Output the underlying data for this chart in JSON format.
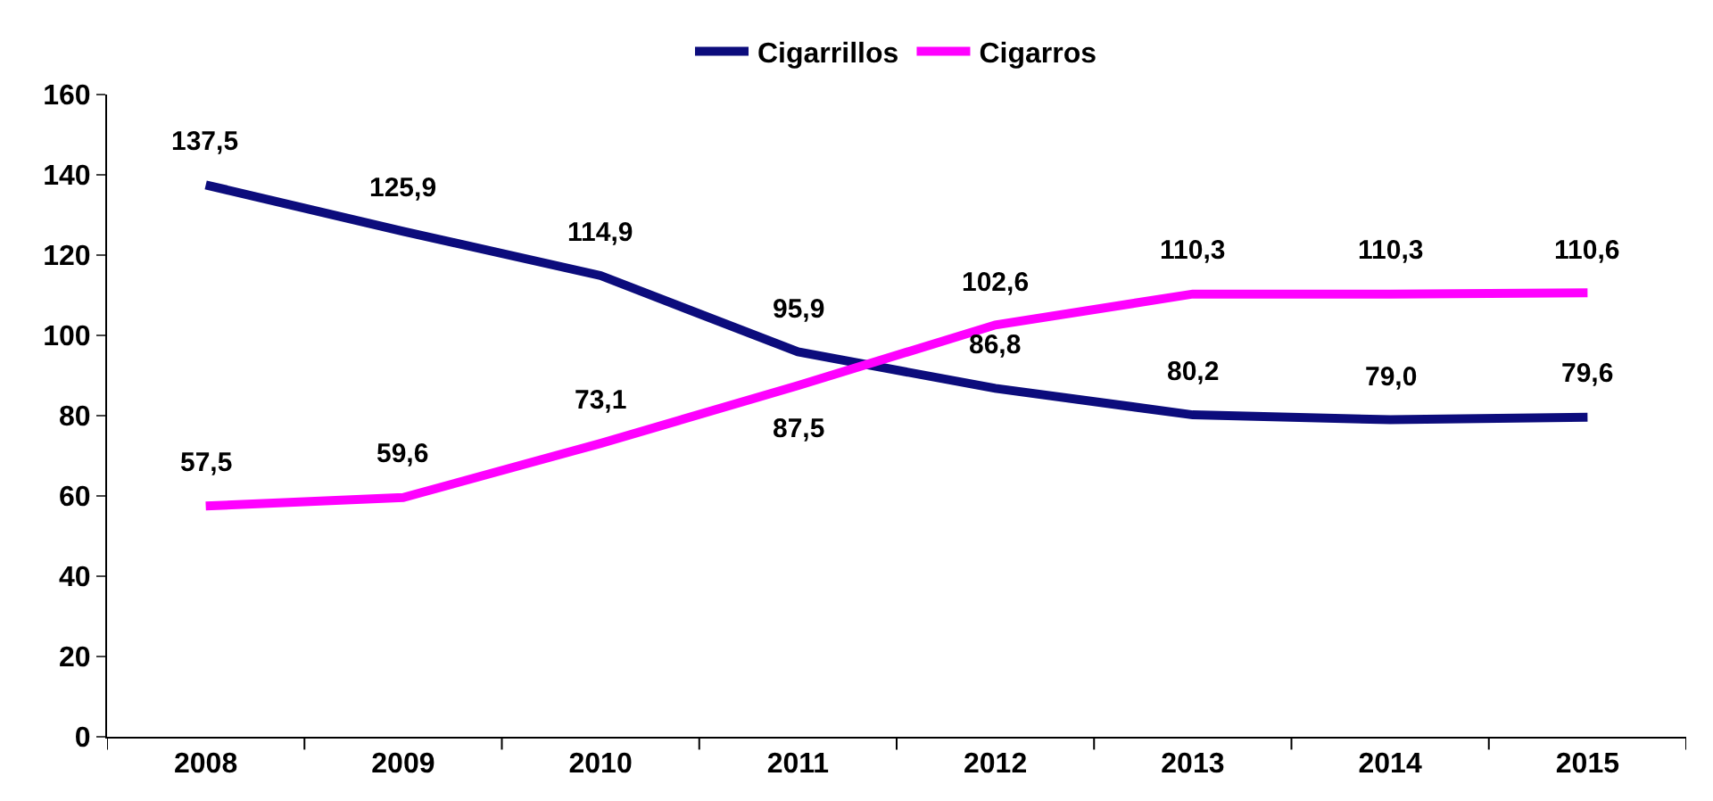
{
  "chart_data": {
    "type": "line",
    "categories": [
      "2008",
      "2009",
      "2010",
      "2011",
      "2012",
      "2013",
      "2014",
      "2015"
    ],
    "series": [
      {
        "name": "Cigarrillos",
        "color": "#0c0c7c",
        "values": [
          137.5,
          125.9,
          114.9,
          95.9,
          86.8,
          80.2,
          79.0,
          79.6
        ],
        "value_labels": [
          "137,5",
          "125,9",
          "114,9",
          "95,9",
          "86,8",
          "80,2",
          "79,0",
          "79,6"
        ]
      },
      {
        "name": "Cigarros",
        "color": "#ff00ff",
        "values": [
          57.5,
          59.6,
          73.1,
          87.5,
          102.6,
          110.3,
          110.3,
          110.6
        ],
        "value_labels": [
          "57,5",
          "59,6",
          "73,1",
          "87,5",
          "102,6",
          "110,3",
          "110,3",
          "110,6"
        ]
      }
    ],
    "ylim": [
      0,
      160
    ],
    "yticks": [
      0,
      20,
      40,
      60,
      80,
      100,
      120,
      140,
      160
    ],
    "legend": "top",
    "marker": "none",
    "line_style": "solid"
  }
}
